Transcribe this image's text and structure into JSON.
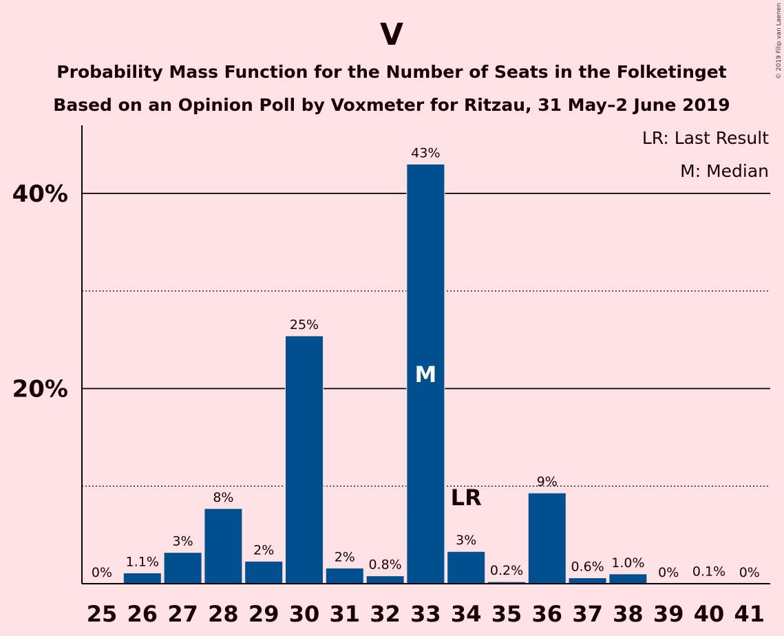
{
  "chart_data": {
    "type": "bar",
    "title": "V",
    "subtitle_lines": [
      "Probability Mass Function for the Number of Seats in the Folketinget",
      "Based on an Opinion Poll by Voxmeter for Ritzau, 31 May–2 June 2019"
    ],
    "categories": [
      "25",
      "26",
      "27",
      "28",
      "29",
      "30",
      "31",
      "32",
      "33",
      "34",
      "35",
      "36",
      "37",
      "38",
      "39",
      "40",
      "41"
    ],
    "values": [
      0,
      1.1,
      3.2,
      7.7,
      2.3,
      25.4,
      1.6,
      0.8,
      43.0,
      3.3,
      0.2,
      9.3,
      0.6,
      1.0,
      0,
      0.1,
      0
    ],
    "value_labels": [
      "0%",
      "1.1%",
      "3%",
      "8%",
      "2%",
      "25%",
      "2%",
      "0.8%",
      "43%",
      "3%",
      "0.2%",
      "9%",
      "0.6%",
      "1.0%",
      "0%",
      "0.1%",
      "0%"
    ],
    "ylim": [
      0,
      47
    ],
    "yticks": [
      {
        "value": 20,
        "label": "20%"
      },
      {
        "value": 40,
        "label": "40%"
      }
    ],
    "minor_gridlines": [
      10,
      30
    ],
    "bar_color": "#00508F",
    "background_color": "#FFE2E6",
    "median": {
      "category": "33",
      "label": "M"
    },
    "last_result": {
      "category": "34",
      "label": "LR"
    },
    "legend": [
      "LR: Last Result",
      "M: Median"
    ],
    "legend_position": "top-right",
    "copyright": "© 2019 Filip van Laenen"
  }
}
